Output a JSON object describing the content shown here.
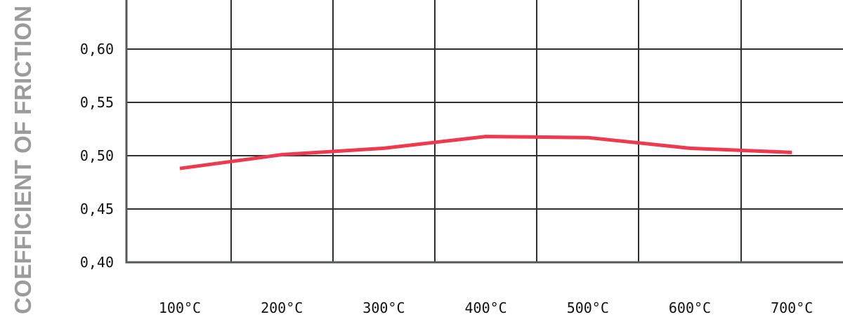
{
  "chart_data": {
    "type": "line",
    "title": "",
    "xlabel": "",
    "ylabel": "COEFFICIENT OF FRICTION",
    "x_tick_labels": [
      "100°C",
      "200°C",
      "300°C",
      "400°C",
      "500°C",
      "600°C",
      "700°C"
    ],
    "y_tick_labels": [
      "0,40",
      "0,45",
      "0,50",
      "0,55",
      "0,60"
    ],
    "y_ticks": [
      0.4,
      0.45,
      0.5,
      0.55,
      0.6
    ],
    "ylim": [
      0.4,
      0.646
    ],
    "grid": true,
    "series": [
      {
        "x": [
          100,
          200,
          300,
          400,
          500,
          600,
          700
        ],
        "values": [
          0.488,
          0.501,
          0.507,
          0.518,
          0.517,
          0.507,
          0.503
        ],
        "color": "#ee3a4f"
      }
    ]
  }
}
